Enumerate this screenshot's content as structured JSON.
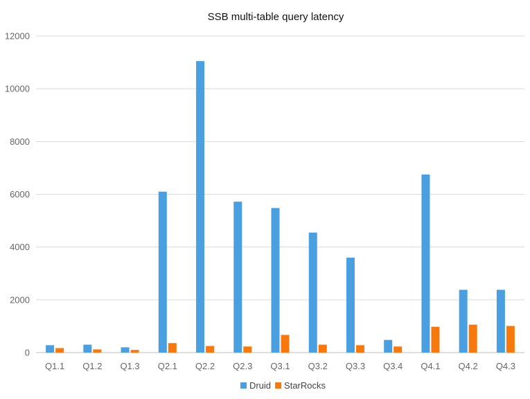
{
  "chart_data": {
    "type": "bar",
    "title": "SSB multi-table query latency",
    "xlabel": "",
    "ylabel": "",
    "categories": [
      "Q1.1",
      "Q1.2",
      "Q1.3",
      "Q2.1",
      "Q2.2",
      "Q2.3",
      "Q3.1",
      "Q3.2",
      "Q3.3",
      "Q3.4",
      "Q4.1",
      "Q4.2",
      "Q4.3"
    ],
    "series": [
      {
        "name": "Druid",
        "color": "#4a9fe0",
        "values": [
          280,
          300,
          200,
          6100,
          11050,
          5720,
          5480,
          4550,
          3600,
          480,
          6750,
          2380,
          2380
        ]
      },
      {
        "name": "StarRocks",
        "color": "#f7790d",
        "values": [
          170,
          120,
          100,
          360,
          250,
          230,
          670,
          300,
          280,
          230,
          980,
          1060,
          1010
        ]
      }
    ],
    "ylim": [
      0,
      12000
    ],
    "yticks": [
      0,
      2000,
      4000,
      6000,
      8000,
      10000,
      12000
    ],
    "grid": true,
    "legend": "bottom-center"
  }
}
